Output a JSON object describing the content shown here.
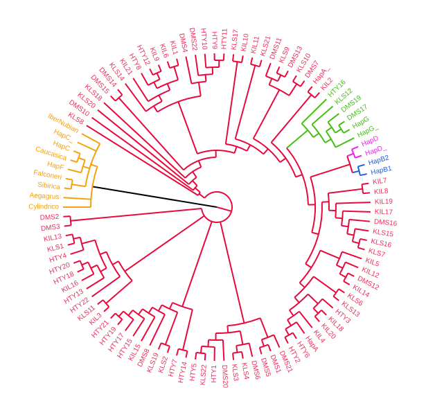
{
  "colors": {
    "red_branch": "#e8093c",
    "red_label": "#ec2d5c",
    "orange": "#f5a00f",
    "green": "#44bf10",
    "magenta": "#ee22ee",
    "blue": "#1f5fe0",
    "root": "#000000"
  },
  "groups": {
    "orange": [
      "Cylindrico",
      "Aegagrus",
      "Sibirica",
      "Falconeri",
      "HapF",
      "Caucasica",
      "HapC",
      "HapC_",
      "IberNubian"
    ],
    "green": [
      "HTY16",
      "KLS12",
      "DMS19",
      "DMS17",
      "HapG",
      "HapG_"
    ],
    "magenta": [
      "HapD",
      "HapD_"
    ],
    "blue": [
      "HapB2",
      "HapB1"
    ]
  },
  "tree": [
    [
      "Cylindrico",
      "Aegagrus",
      [
        [
          "Sibirica",
          "Falconeri"
        ],
        [
          "HapF",
          [
            "Caucasica",
            "HapC"
          ]
        ],
        "HapC_",
        "IberNubian"
      ]
    ],
    [
      [
        "KLS8",
        [
          "DMS10",
          [
            "KLS20",
            [
              "KLS18",
              [
                [
                  "DMS15",
                  "DMS14"
                ],
                [
                  [
                    [
                      "KLS14",
                      [
                        "KIL21",
                        [
                          [
                            "HTY8",
                            [
                              "HTY12",
                              "KIL9"
                            ]
                          ],
                          [
                            "KIL6",
                            "KIL1"
                          ]
                        ]
                      ]
                    ],
                    [
                      "DMS4",
                      [
                        "DMS22",
                        [
                          "HTY10",
                          [
                            "HTY9",
                            "HTY11"
                          ]
                        ]
                      ]
                    ]
                  ],
                  [
                    [
                      "KLS17",
                      "KIL10"
                    ],
                    [
                      [
                        "KIL11",
                        "KLS21"
                      ],
                      [
                        [
                          [
                            "DMS11",
                            [
                              "KLS9",
                              "DMS13"
                            ]
                          ],
                          [
                            "KLS10",
                            "DMS7"
                          ]
                        ],
                        [
                          [
                            "HapA_",
                            "KIL2"
                          ],
                          [
                            [
                              "HTY16",
                              [
                                "KLS12",
                                [
                                  [
                                    "DMS19",
                                    [
                                      "DMS17",
                                      "HapG"
                                    ]
                                  ],
                                  "HapG_"
                                ]
                              ]
                            ],
                            [
                              [
                                [
                                  "HapD",
                                  "HapD_"
                                ],
                                [
                                  "HapB2",
                                  "HapB1"
                                ]
                              ],
                              [
                                [
                                  [
                                    "KIL7",
                                    "KIL8"
                                  ],
                                  [
                                    "KIL19",
                                    [
                                      "KIL17",
                                      [
                                        "DMS16",
                                        [
                                          "KLS15",
                                          [
                                            "KLS16",
                                            "KLS7"
                                          ]
                                        ]
                                      ]
                                    ]
                                  ]
                                ],
                                [
                                  [
                                    "KIL5",
                                    [
                                      "KIL12",
                                      [
                                        "DMS12",
                                        "KIL14"
                                      ]
                                    ]
                                  ],
                                  [
                                    [
                                      "KLS6",
                                      "KLS13"
                                    ],
                                    [
                                      [
                                        "HTY3",
                                        [
                                          "KIL18",
                                          "KIL20"
                                        ]
                                      ],
                                      [
                                        "KIL4",
                                        [
                                          "HapA",
                                          [
                                            "HTY6",
                                            "HTY2"
                                          ]
                                        ]
                                      ]
                                    ]
                                  ]
                                ]
                              ]
                            ]
                          ]
                        ]
                      ]
                    ]
                  ]
                ]
              ]
            ]
          ]
        ]
      ],
      [
        [
          "DMS21",
          [
            "DMS1",
            "DMS5"
          ]
        ],
        [
          [
            "DMS6",
            [
              "KLS4",
              "KLS3"
            ]
          ],
          [
            "DMS20",
            [
              "HTY1",
              [
                "KLS22",
                "HTY5"
              ]
            ]
          ]
        ]
      ],
      [
        [
          "HTY14",
          "HTY7"
        ],
        [
          [
            "KLS2",
            "KLS19"
          ],
          [
            "DMS8",
            [
              "KIL15",
              [
                "HTY15",
                [
                  "HTY17",
                  [
                    "HTY19",
                    "HTY21"
                  ]
                ]
              ]
            ]
          ]
        ]
      ],
      [
        [
          "KIL3",
          "KLS11"
        ],
        [
          "HTY22",
          [
            [
              "HTY13",
              [
                "KIL16",
                [
                  "HTY18",
                  "HTY20"
                ]
              ]
            ],
            [
              "HTY4",
              [
                "KLS1",
                "KIL13"
              ]
            ]
          ]
        ]
      ],
      [
        "DMS3",
        "DMS2"
      ]
    ]
  ]
}
